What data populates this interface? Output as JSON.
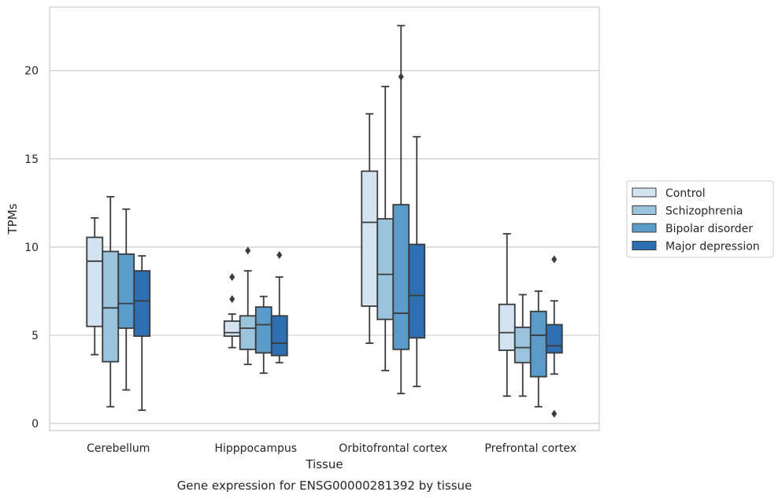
{
  "caption": "Gene expression for ENSG00000281392 by tissue",
  "chart_data": {
    "type": "box",
    "xlabel": "Tissue",
    "ylabel": "TPMs",
    "ylim": [
      -0.4,
      23.6
    ],
    "yticks": [
      0,
      5,
      10,
      15,
      20
    ],
    "grid": "horizontal",
    "legend_position": "right-outside",
    "categories": [
      "Cerebellum",
      "Hipppocampus",
      "Orbitofrontal cortex",
      "Prefrontal cortex"
    ],
    "series": [
      {
        "name": "Control",
        "color": "#d4e3f1",
        "boxes": [
          {
            "whislo": 3.9,
            "q1": 5.5,
            "med": 9.2,
            "q3": 10.55,
            "whishi": 11.65,
            "fliers": []
          },
          {
            "whislo": 4.3,
            "q1": 4.95,
            "med": 5.15,
            "q3": 5.8,
            "whishi": 6.2,
            "fliers": [
              7.05,
              8.3
            ]
          },
          {
            "whislo": 4.55,
            "q1": 6.65,
            "med": 11.4,
            "q3": 14.3,
            "whishi": 17.55,
            "fliers": []
          },
          {
            "whislo": 1.55,
            "q1": 4.15,
            "med": 5.15,
            "q3": 6.75,
            "whishi": 10.75,
            "fliers": []
          }
        ]
      },
      {
        "name": "Schizophrenia",
        "color": "#9cc3dc",
        "boxes": [
          {
            "whislo": 0.95,
            "q1": 3.5,
            "med": 6.55,
            "q3": 9.75,
            "whishi": 12.85,
            "fliers": []
          },
          {
            "whislo": 3.35,
            "q1": 4.2,
            "med": 5.4,
            "q3": 6.1,
            "whishi": 8.65,
            "fliers": [
              9.8
            ]
          },
          {
            "whislo": 3.0,
            "q1": 5.9,
            "med": 8.45,
            "q3": 11.6,
            "whishi": 19.1,
            "fliers": []
          },
          {
            "whislo": 1.55,
            "q1": 3.45,
            "med": 4.3,
            "q3": 5.45,
            "whishi": 7.3,
            "fliers": []
          }
        ]
      },
      {
        "name": "Bipolar disorder",
        "color": "#5b9bc9",
        "boxes": [
          {
            "whislo": 1.9,
            "q1": 5.4,
            "med": 6.8,
            "q3": 9.6,
            "whishi": 12.15,
            "fliers": []
          },
          {
            "whislo": 2.85,
            "q1": 4.0,
            "med": 5.6,
            "q3": 6.6,
            "whishi": 7.2,
            "fliers": []
          },
          {
            "whislo": 1.7,
            "q1": 4.2,
            "med": 6.25,
            "q3": 12.4,
            "whishi": 22.55,
            "fliers": [
              19.65
            ]
          },
          {
            "whislo": 0.95,
            "q1": 2.65,
            "med": 5.0,
            "q3": 6.35,
            "whishi": 7.5,
            "fliers": []
          }
        ]
      },
      {
        "name": "Major depression",
        "color": "#2d6fb0",
        "boxes": [
          {
            "whislo": 0.75,
            "q1": 4.95,
            "med": 6.95,
            "q3": 8.65,
            "whishi": 9.5,
            "fliers": []
          },
          {
            "whislo": 3.45,
            "q1": 3.85,
            "med": 4.55,
            "q3": 6.1,
            "whishi": 8.3,
            "fliers": [
              9.55
            ]
          },
          {
            "whislo": 2.1,
            "q1": 4.85,
            "med": 7.25,
            "q3": 10.15,
            "whishi": 16.25,
            "fliers": []
          },
          {
            "whislo": 2.8,
            "q1": 4.0,
            "med": 4.4,
            "q3": 5.6,
            "whishi": 6.95,
            "fliers": [
              0.55,
              9.3
            ]
          }
        ]
      }
    ]
  }
}
